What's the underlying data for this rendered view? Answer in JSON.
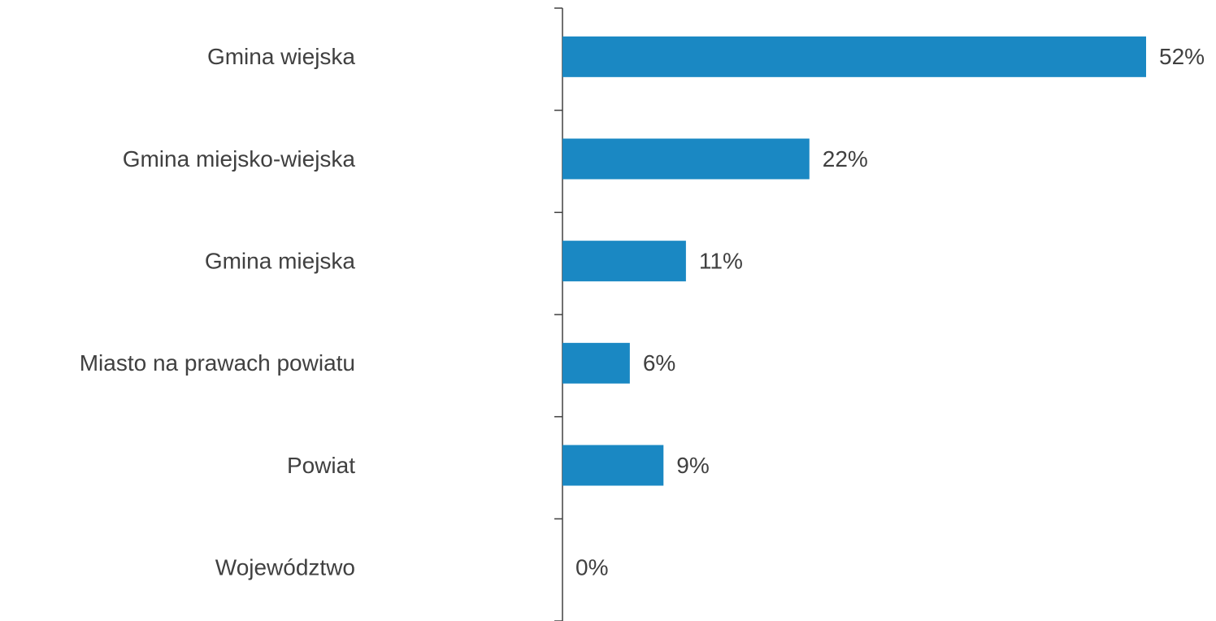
{
  "chart_data": {
    "type": "bar",
    "orientation": "horizontal",
    "categories": [
      "Gmina wiejska",
      "Gmina miejsko-wiejska",
      "Gmina miejska",
      "Miasto na prawach powiatu",
      "Powiat",
      "Województwo"
    ],
    "values": [
      52,
      22,
      11,
      6,
      9,
      0
    ],
    "value_labels": [
      "52%",
      "22%",
      "11%",
      "6%",
      "9%",
      "0%"
    ],
    "color": "#1a88c3"
  }
}
